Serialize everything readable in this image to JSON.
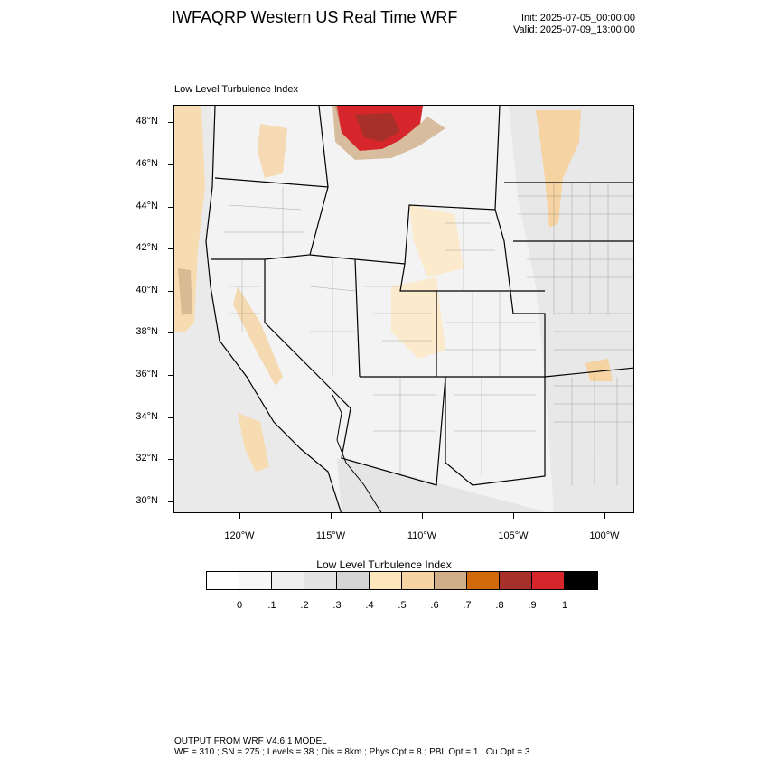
{
  "header": {
    "title": "IWFAQRP Western US Real Time WRF",
    "init": "Init: 2025-07-05_00:00:00",
    "valid": "Valid: 2025-07-09_13:00:00"
  },
  "map": {
    "panel_title": "Low Level Turbulence Index",
    "lat_labels": [
      "48°N",
      "46°N",
      "44°N",
      "42°N",
      "40°N",
      "38°N",
      "36°N",
      "34°N",
      "32°N",
      "30°N"
    ],
    "lon_labels": [
      "120°W",
      "115°W",
      "110°W",
      "105°W",
      "100°W"
    ]
  },
  "colorbar": {
    "title": "Low Level Turbulence Index",
    "labels": [
      "0",
      ".1",
      ".2",
      ".3",
      ".4",
      ".5",
      ".6",
      ".7",
      ".8",
      ".9",
      "1"
    ],
    "colors": [
      "#ffffff",
      "#f7f7f7",
      "#efefef",
      "#e3e3e3",
      "#d5d5d5",
      "#fde6bb",
      "#f5d3a3",
      "#cfae88",
      "#d16a0a",
      "#a8302a",
      "#d6262b",
      "#000000"
    ]
  },
  "footer": {
    "line1": "OUTPUT FROM WRF V4.6.1 MODEL",
    "line2": "WE = 310 ; SN = 275 ; Levels = 38 ; Dis = 8km ; Phys Opt = 8 ; PBL Opt = 1 ; Cu Opt = 3"
  }
}
